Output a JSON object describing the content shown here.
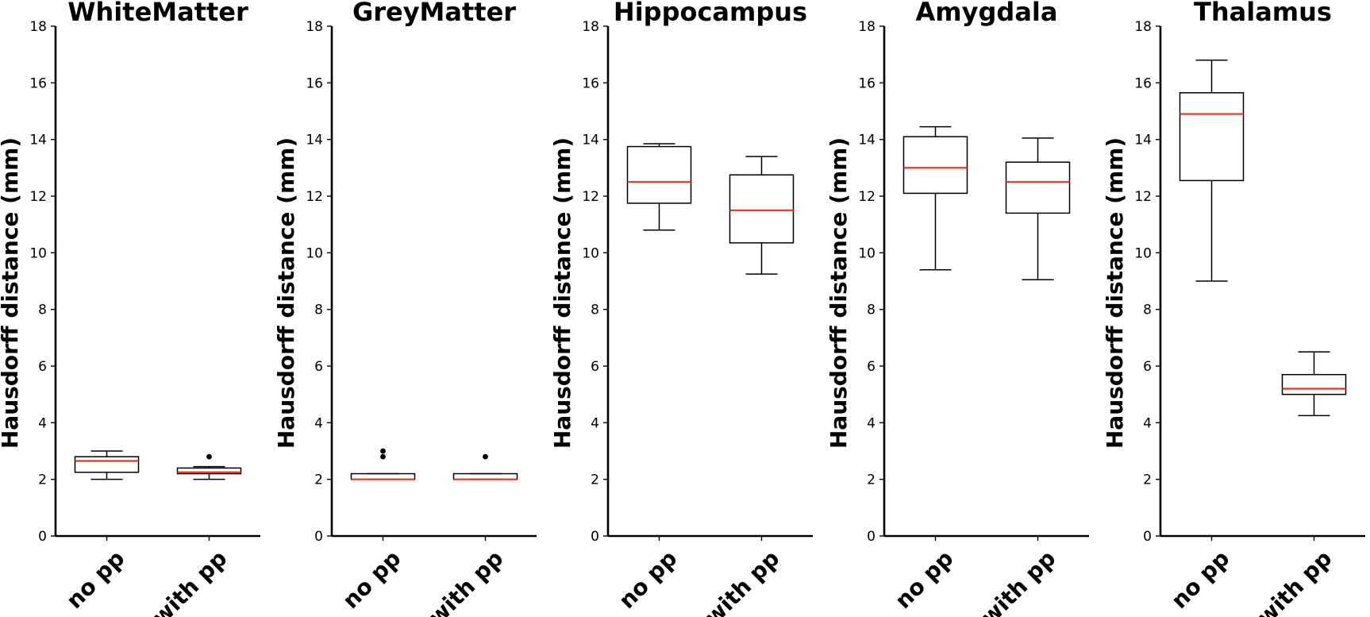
{
  "chart_data": [
    {
      "type": "box",
      "title": "WhiteMatter",
      "ylabel": "Hausdorff distance (mm)",
      "ylim": [
        0,
        18
      ],
      "yticks": [
        0,
        2,
        4,
        6,
        8,
        10,
        12,
        14,
        16,
        18
      ],
      "categories": [
        "no pp",
        "with pp"
      ],
      "boxes": [
        {
          "category": "no pp",
          "whislo": 2.0,
          "q1": 2.25,
          "med": 2.65,
          "q3": 2.8,
          "whishi": 3.0,
          "fliers": []
        },
        {
          "category": "with pp",
          "whislo": 2.0,
          "q1": 2.2,
          "med": 2.25,
          "q3": 2.4,
          "whishi": 2.45,
          "fliers": [
            2.8
          ]
        }
      ]
    },
    {
      "type": "box",
      "title": "GreyMatter",
      "ylabel": "Hausdorff distance (mm)",
      "ylim": [
        0,
        18
      ],
      "yticks": [
        0,
        2,
        4,
        6,
        8,
        10,
        12,
        14,
        16,
        18
      ],
      "categories": [
        "no pp",
        "with pp"
      ],
      "boxes": [
        {
          "category": "no pp",
          "whislo": 2.0,
          "q1": 2.0,
          "med": 2.0,
          "q3": 2.2,
          "whishi": 2.2,
          "fliers": [
            2.8,
            3.0
          ]
        },
        {
          "category": "with pp",
          "whislo": 2.0,
          "q1": 2.0,
          "med": 2.0,
          "q3": 2.2,
          "whishi": 2.2,
          "fliers": [
            2.8
          ]
        }
      ]
    },
    {
      "type": "box",
      "title": "Hippocampus",
      "ylabel": "Hausdorff distance (mm)",
      "ylim": [
        0,
        18
      ],
      "yticks": [
        0,
        2,
        4,
        6,
        8,
        10,
        12,
        14,
        16,
        18
      ],
      "categories": [
        "no pp",
        "with pp"
      ],
      "boxes": [
        {
          "category": "no pp",
          "whislo": 10.8,
          "q1": 11.75,
          "med": 12.5,
          "q3": 13.75,
          "whishi": 13.85,
          "fliers": []
        },
        {
          "category": "with pp",
          "whislo": 9.25,
          "q1": 10.35,
          "med": 11.5,
          "q3": 12.75,
          "whishi": 13.4,
          "fliers": []
        }
      ]
    },
    {
      "type": "box",
      "title": "Amygdala",
      "ylabel": "Hausdorff distance (mm)",
      "ylim": [
        0,
        18
      ],
      "yticks": [
        0,
        2,
        4,
        6,
        8,
        10,
        12,
        14,
        16,
        18
      ],
      "categories": [
        "no pp",
        "with pp"
      ],
      "boxes": [
        {
          "category": "no pp",
          "whislo": 9.4,
          "q1": 12.1,
          "med": 13.0,
          "q3": 14.1,
          "whishi": 14.45,
          "fliers": []
        },
        {
          "category": "with pp",
          "whislo": 9.05,
          "q1": 11.4,
          "med": 12.5,
          "q3": 13.2,
          "whishi": 14.05,
          "fliers": []
        }
      ]
    },
    {
      "type": "box",
      "title": "Thalamus",
      "ylabel": "Hausdorff distance (mm)",
      "ylim": [
        0,
        18
      ],
      "yticks": [
        0,
        2,
        4,
        6,
        8,
        10,
        12,
        14,
        16,
        18
      ],
      "categories": [
        "no pp",
        "with pp"
      ],
      "boxes": [
        {
          "category": "no pp",
          "whislo": 9.0,
          "q1": 12.55,
          "med": 14.9,
          "q3": 15.65,
          "whishi": 16.8,
          "fliers": []
        },
        {
          "category": "with pp",
          "whislo": 4.25,
          "q1": 5.0,
          "med": 5.2,
          "q3": 5.7,
          "whishi": 6.5,
          "fliers": []
        }
      ]
    }
  ],
  "colors": {
    "median": "#e8321e",
    "box": "#000000",
    "background": "#ffffff"
  }
}
